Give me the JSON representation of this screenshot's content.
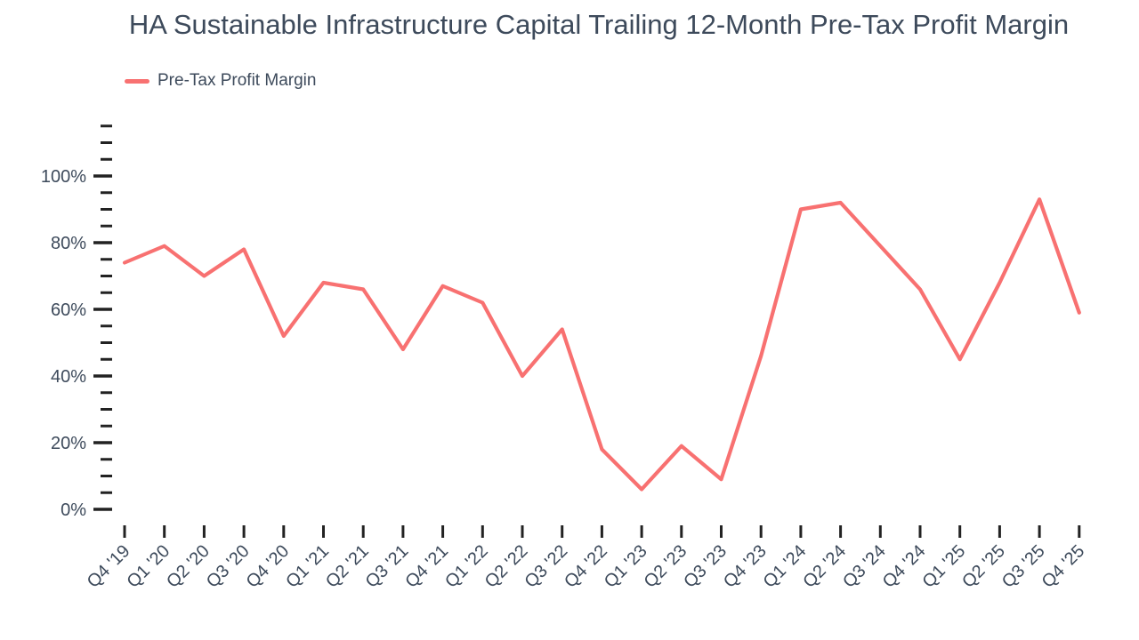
{
  "title": "HA Sustainable Infrastructure Capital Trailing 12-Month Pre-Tax Profit Margin",
  "legend": {
    "label": "Pre-Tax Profit Margin",
    "color": "#f87171"
  },
  "colors": {
    "line": "#f87171",
    "label_text": "#3d4a5b",
    "tick_mark": "#222222",
    "background": "#ffffff"
  },
  "chart_data": {
    "type": "line",
    "title": "HA Sustainable Infrastructure Capital Trailing 12-Month Pre-Tax Profit Margin",
    "xlabel": "",
    "ylabel": "",
    "grid": false,
    "legend_position": "top-left",
    "categories": [
      "Q4 '19",
      "Q1 '20",
      "Q2 '20",
      "Q3 '20",
      "Q4 '20",
      "Q1 '21",
      "Q2 '21",
      "Q3 '21",
      "Q4 '21",
      "Q1 '22",
      "Q2 '22",
      "Q3 '22",
      "Q4 '22",
      "Q1 '23",
      "Q2 '23",
      "Q3 '23",
      "Q4 '23",
      "Q1 '24",
      "Q2 '24",
      "Q3 '24",
      "Q4 '24",
      "Q1 '25",
      "Q2 '25",
      "Q3 '25",
      "Q4 '25"
    ],
    "series": [
      {
        "name": "Pre-Tax Profit Margin",
        "color": "#f87171",
        "unit": "%",
        "values": [
          74,
          79,
          70,
          78,
          52,
          68,
          66,
          48,
          67,
          62,
          40,
          54,
          18,
          6,
          19,
          9,
          46,
          90,
          92,
          79,
          66,
          45,
          68,
          93,
          59
        ]
      }
    ],
    "y_axis": {
      "min": 0,
      "max": 115,
      "major_step": 20,
      "minor_step": 5,
      "tick_labels": [
        "0%",
        "20%",
        "40%",
        "60%",
        "80%",
        "100%"
      ],
      "tick_format": "percent"
    }
  }
}
